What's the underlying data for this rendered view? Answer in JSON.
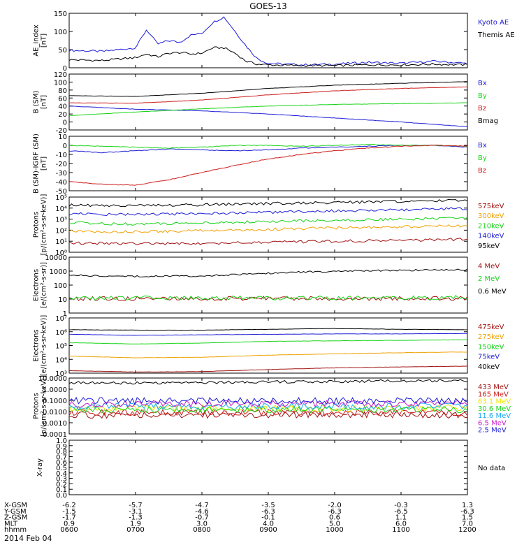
{
  "title": "GOES-13",
  "date_label": "2014 Feb 04",
  "orbit_rows": [
    {
      "label": "X-GSM",
      "values": [
        "-6.2",
        "-5.7",
        "-4.7",
        "-3.5",
        "-2.0",
        "-0.3",
        "1.3"
      ]
    },
    {
      "label": "Y-GSM",
      "values": [
        "-1.5",
        "-3.1",
        "-4.6",
        "-6.3",
        "-6.3",
        "-6.5",
        "-6.3"
      ]
    },
    {
      "label": "Z-GSM",
      "values": [
        "-1.7",
        "-1.3",
        "-0.7",
        "-0.1",
        "0.6",
        "1.1",
        "1.5"
      ]
    },
    {
      "label": "MLT",
      "values": [
        "0.9",
        "1.9",
        "3.0",
        "4.0",
        "5.0",
        "6.0",
        "7.0"
      ]
    },
    {
      "label": "hhmm",
      "values": [
        "0600",
        "0700",
        "0800",
        "0900",
        "1000",
        "1100",
        "1200"
      ]
    }
  ],
  "colors": {
    "black": "#000000",
    "blue": "#1c1cd6",
    "green": "#18d418",
    "red": "#cc1c1c",
    "darkred": "#a01010",
    "orange": "#f0a000",
    "yellow": "#e8e800",
    "cyan": "#18a8f0",
    "magenta": "#c820c8"
  },
  "chart_data": [
    {
      "type": "line",
      "title": "GOES-13",
      "ylabel": "AE_index\n[nT]",
      "ylim": [
        0,
        150
      ],
      "yscale": "linear",
      "yticks": [
        "0",
        "50",
        "100",
        "150"
      ],
      "x": [
        "0600",
        "0630",
        "0700",
        "0710",
        "0720",
        "0730",
        "0740",
        "0750",
        "0800",
        "0810",
        "0820",
        "0830",
        "0840",
        "0850",
        "0900",
        "0930",
        "1000",
        "1030",
        "1100",
        "1130",
        "1200"
      ],
      "series": [
        {
          "name": "Kyoto AE",
          "color": "blue",
          "values": [
            48,
            45,
            55,
            105,
            65,
            75,
            70,
            90,
            95,
            125,
            140,
            100,
            60,
            25,
            12,
            8,
            10,
            15,
            12,
            18,
            12
          ]
        },
        {
          "name": "Themis AE",
          "color": "black",
          "values": [
            22,
            20,
            28,
            38,
            30,
            40,
            42,
            38,
            40,
            55,
            55,
            40,
            18,
            10,
            8,
            6,
            6,
            8,
            8,
            10,
            8
          ]
        }
      ]
    },
    {
      "type": "line",
      "ylabel": "B (SM)\n[nT]",
      "ylim": [
        -20,
        120
      ],
      "yscale": "linear",
      "yticks": [
        "-20",
        "0",
        "20",
        "40",
        "60",
        "80",
        "100",
        "120"
      ],
      "x": [
        "0600",
        "0700",
        "0800",
        "0900",
        "1000",
        "1100",
        "1200"
      ],
      "series": [
        {
          "name": "Bx",
          "color": "blue",
          "values": [
            40,
            32,
            28,
            20,
            10,
            0,
            -12
          ]
        },
        {
          "name": "By",
          "color": "green",
          "values": [
            16,
            25,
            33,
            40,
            44,
            46,
            48
          ]
        },
        {
          "name": "Bz",
          "color": "red",
          "values": [
            48,
            47,
            55,
            68,
            78,
            84,
            88
          ]
        },
        {
          "name": "Bmag",
          "color": "black",
          "values": [
            66,
            64,
            72,
            84,
            92,
            97,
            101
          ]
        }
      ]
    },
    {
      "type": "line",
      "ylabel": "B (SM)-IGRF (SM)\n[nT]",
      "ylim": [
        -50,
        10
      ],
      "yscale": "linear",
      "yticks": [
        "-50",
        "-40",
        "-30",
        "-20",
        "-10",
        "0",
        "10"
      ],
      "x": [
        "0600",
        "0630",
        "0700",
        "0730",
        "0800",
        "0830",
        "0900",
        "0930",
        "1000",
        "1030",
        "1100",
        "1130",
        "1200"
      ],
      "series": [
        {
          "name": "Bx",
          "color": "blue",
          "values": [
            -6,
            -8,
            -6,
            -4,
            -5,
            -6,
            -5,
            -3,
            -2,
            -1,
            0,
            0,
            -2
          ]
        },
        {
          "name": "By",
          "color": "green",
          "values": [
            0,
            -1,
            -2,
            -3,
            -2,
            0,
            0,
            -1,
            0,
            1,
            0,
            0,
            -1
          ]
        },
        {
          "name": "Bz",
          "color": "red",
          "values": [
            -40,
            -43,
            -44,
            -38,
            -30,
            -22,
            -15,
            -10,
            -6,
            -3,
            -1,
            0,
            -1
          ]
        }
      ]
    },
    {
      "type": "line",
      "ylabel": "Protons\n[p/(cm²-s-sr-keV)]",
      "ylim": [
        1,
        100000
      ],
      "yscale": "log",
      "yticks": [
        "10⁰",
        "10¹",
        "10²",
        "10³",
        "10⁴",
        "10⁵"
      ],
      "x": [
        "0600",
        "0700",
        "0800",
        "0900",
        "1000",
        "1100",
        "1200"
      ],
      "series": [
        {
          "name": "575keV",
          "color": "darkred",
          "values": [
            7,
            6,
            6,
            8,
            10,
            12,
            15
          ]
        },
        {
          "name": "300keV",
          "color": "orange",
          "values": [
            80,
            70,
            90,
            120,
            160,
            200,
            250
          ]
        },
        {
          "name": "210keV",
          "color": "green",
          "values": [
            450,
            350,
            450,
            600,
            800,
            1000,
            1200
          ]
        },
        {
          "name": "140keV",
          "color": "blue",
          "values": [
            3000,
            2500,
            3200,
            4000,
            5500,
            7000,
            9000
          ]
        },
        {
          "name": "95keV",
          "color": "black",
          "values": [
            18000,
            16000,
            20000,
            26000,
            32000,
            40000,
            48000
          ]
        }
      ]
    },
    {
      "type": "line",
      "ylabel": "Electrons\n[e/(cm²-s-sr)]",
      "ylim": [
        1,
        10000
      ],
      "yscale": "log",
      "yticks": [
        "1",
        "10",
        "100",
        "1000",
        "10000"
      ],
      "x": [
        "0600",
        "0700",
        "0800",
        "0900",
        "1000",
        "1100",
        "1200"
      ],
      "series": [
        {
          "name": "4 MeV",
          "color": "darkred",
          "values": [
            11,
            11,
            11,
            11,
            11,
            11,
            11
          ]
        },
        {
          "name": "2 MeV",
          "color": "green",
          "values": [
            12,
            12,
            12,
            12,
            12,
            12,
            13
          ]
        },
        {
          "name": "0.6 MeV",
          "color": "black",
          "values": [
            500,
            420,
            450,
            700,
            1000,
            1150,
            1250
          ]
        }
      ]
    },
    {
      "type": "line",
      "ylabel": "Electrons\n[e/(cm²-s-sr-keV)]",
      "ylim": [
        1000,
        10000000
      ],
      "yscale": "log",
      "yticks": [
        "10³",
        "10⁴",
        "10⁵",
        "10⁶",
        "10⁷"
      ],
      "x": [
        "0600",
        "0700",
        "0800",
        "0900",
        "1000",
        "1100",
        "1200"
      ],
      "series": [
        {
          "name": "475keV",
          "color": "darkred",
          "values": [
            1500,
            1200,
            1300,
            1800,
            2400,
            2800,
            3200
          ]
        },
        {
          "name": "275keV",
          "color": "orange",
          "values": [
            17000,
            13000,
            14000,
            20000,
            25000,
            30000,
            34000
          ]
        },
        {
          "name": "150keV",
          "color": "green",
          "values": [
            160000,
            130000,
            150000,
            200000,
            220000,
            240000,
            260000
          ]
        },
        {
          "name": "75keV",
          "color": "blue",
          "values": [
            650000,
            550000,
            600000,
            650000,
            700000,
            700000,
            750000
          ]
        },
        {
          "name": "40keV",
          "color": "black",
          "values": [
            1400000,
            1300000,
            1300000,
            1500000,
            1700000,
            1500000,
            1400000
          ]
        }
      ]
    },
    {
      "type": "line",
      "ylabel": "Protons\n[p/(cm²-s-sr-keV)]",
      "ylim": [
        0.0001,
        10
      ],
      "yscale": "log",
      "yticks": [
        "0.0001",
        "0.0010",
        "0.0100",
        "0.1000",
        "1.0000",
        "10.0000"
      ],
      "x": [
        "0600",
        "0700",
        "0800",
        "0900",
        "1000",
        "1100",
        "1200"
      ],
      "series": [
        {
          "name": "433 MeV",
          "color": "darkred",
          "values": [
            0.005,
            0.005,
            0.005,
            0.005,
            0.005,
            0.005,
            0.005
          ]
        },
        {
          "name": "165 MeV",
          "color": "red",
          "values": [
            0.008,
            0.008,
            0.008,
            0.008,
            0.008,
            0.008,
            0.008
          ]
        },
        {
          "name": "63.1 MeV",
          "color": "yellow",
          "values": [
            0.02,
            0.02,
            0.02,
            0.02,
            0.02,
            0.02,
            0.02
          ]
        },
        {
          "name": "30.6 MeV",
          "color": "green",
          "values": [
            0.015,
            0.015,
            0.015,
            0.015,
            0.015,
            0.015,
            0.015
          ]
        },
        {
          "name": "11.6 MeV",
          "color": "cyan",
          "values": [
            0.03,
            0.03,
            0.03,
            0.03,
            0.03,
            0.03,
            0.03
          ]
        },
        {
          "name": "6.5 MeV",
          "color": "magenta",
          "values": [
            0.05,
            0.05,
            0.05,
            0.05,
            0.05,
            0.05,
            0.05
          ]
        },
        {
          "name": "2.5 MeV",
          "color": "blue",
          "values": [
            0.09,
            0.09,
            0.09,
            0.09,
            0.09,
            0.09,
            0.09
          ]
        },
        {
          "name": "",
          "color": "black",
          "values": [
            4,
            3.5,
            4,
            4.5,
            5,
            5.5,
            6
          ]
        }
      ]
    },
    {
      "type": "line",
      "ylabel": "X-ray",
      "ylim": [
        0,
        1
      ],
      "yscale": "linear",
      "yticks": [
        "0.0",
        "0.1",
        "0.2",
        "0.3",
        "0.4",
        "0.5",
        "0.6",
        "0.7",
        "0.8",
        "0.9",
        "1.0"
      ],
      "x": [],
      "series": [],
      "annotation": "No data"
    }
  ]
}
